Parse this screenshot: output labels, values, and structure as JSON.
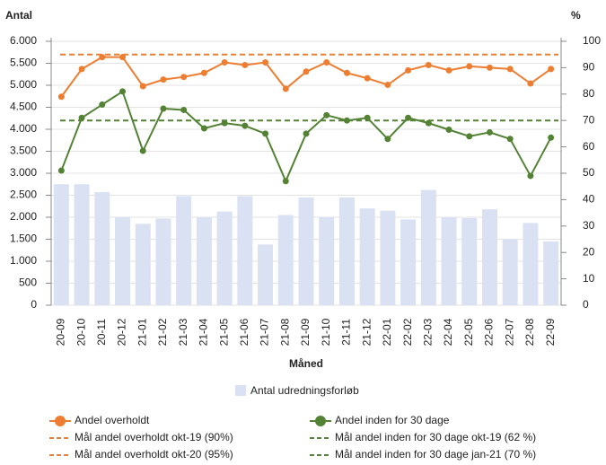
{
  "chart_data": {
    "type": "combo",
    "y_title": "Antal",
    "y2_title": "%",
    "x_title": "Måned",
    "categories": [
      "20-09",
      "20-10",
      "20-11",
      "20-12",
      "21-01",
      "21-02",
      "21-03",
      "21-04",
      "21-05",
      "21-06",
      "21-07",
      "21-08",
      "21-09",
      "21-10",
      "21-11",
      "21-12",
      "22-01",
      "22-02",
      "22-03",
      "22-04",
      "22-05",
      "22-06",
      "22-07",
      "22-08",
      "22-09"
    ],
    "series": [
      {
        "name": "Antal udredningsforløb",
        "type": "bar",
        "color": "#d9e1f2",
        "values": [
          2750,
          2750,
          2570,
          2000,
          1850,
          1970,
          2480,
          2000,
          2130,
          2480,
          1380,
          2050,
          2450,
          2000,
          2450,
          2200,
          2150,
          1950,
          2620,
          2000,
          1980,
          2180,
          1500,
          1870,
          1450
        ]
      },
      {
        "name": "Andel overholdt",
        "type": "line",
        "axis": "y2",
        "color": "#ed7d31",
        "values": [
          79,
          89.5,
          94,
          94,
          83,
          85.5,
          86.5,
          88,
          92,
          91,
          92,
          82,
          88.5,
          92,
          88,
          86,
          83.5,
          89,
          91,
          89,
          90.5,
          90,
          89.5,
          84,
          89.5
        ]
      },
      {
        "name": "Andel inden for 30 dage",
        "type": "line",
        "axis": "y2",
        "color": "#548235",
        "values": [
          51,
          71,
          76,
          81,
          58.5,
          74.5,
          74,
          67,
          69,
          68,
          65,
          47,
          65,
          72,
          70,
          71,
          63,
          71,
          69,
          66.5,
          64,
          65.5,
          63,
          49,
          63.5
        ]
      }
    ],
    "targets": [
      {
        "name": "Mål andel overholdt okt-19 (90%)",
        "color": "#ed7d31"
      },
      {
        "name": "Mål andel inden for 30 dage okt-19 (62 %)",
        "color": "#548235"
      },
      {
        "name": "Mål andel overholdt okt-20 (95%)",
        "color": "#ed7d31",
        "value": 95
      },
      {
        "name": "Mål andel inden for 30 dage jan-21 (70 %)",
        "color": "#548235",
        "value": 70
      }
    ],
    "ylim": [
      0,
      6000
    ],
    "yticks": [
      0,
      {
        "value": 500,
        "label": "500"
      },
      {
        "value": 1000,
        "label": "1.000"
      },
      {
        "value": 1500,
        "label": "1.500"
      },
      {
        "value": 2000,
        "label": "2.000"
      },
      {
        "value": 2500,
        "label": "2.500"
      },
      {
        "value": 3000,
        "label": "3.000"
      },
      {
        "value": 3500,
        "label": "3.500"
      },
      {
        "value": 4000,
        "label": "4.000"
      },
      {
        "value": 4500,
        "label": "4.500"
      },
      {
        "value": 5000,
        "label": "5.000"
      },
      {
        "value": 5500,
        "label": "5.500"
      },
      {
        "value": 6000,
        "label": "6.000"
      }
    ],
    "y2lim": [
      0,
      100
    ],
    "y2ticks": [
      0,
      10,
      20,
      30,
      40,
      50,
      60,
      70,
      80,
      90,
      100
    ],
    "grid": true
  }
}
